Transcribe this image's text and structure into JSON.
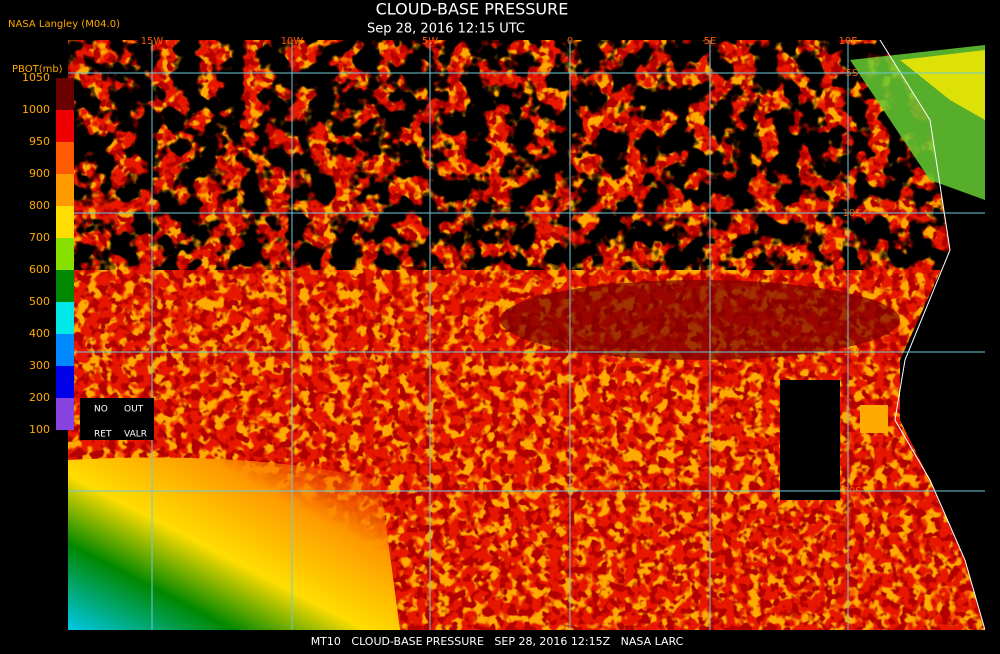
{
  "header": {
    "source": "NASA Langley (M04.0)",
    "title": "CLOUD-BASE PRESSURE",
    "subtitle": "Sep 28, 2016 12:15 UTC"
  },
  "colorbar": {
    "label": "PBOT(mb)",
    "ticks": [
      1050,
      1000,
      950,
      900,
      800,
      700,
      600,
      500,
      400,
      300,
      200,
      100
    ],
    "colors": [
      "#6b0000",
      "#ee0000",
      "#ff5a00",
      "#ff9900",
      "#ffdd00",
      "#88e000",
      "#008800",
      "#00e8e8",
      "#0088ff",
      "#0000e8",
      "#8844e0"
    ]
  },
  "legend_box": {
    "items": [
      "NO",
      "OUT",
      "RET",
      "VALR"
    ]
  },
  "grid": {
    "longitudes": [
      "15W",
      "10W",
      "5W",
      "0",
      "5E",
      "10E"
    ],
    "latitudes": [
      "5S",
      "10S",
      "15S",
      "20S"
    ]
  },
  "footer": "MT10   CLOUD-BASE PRESSURE   SEP 28, 2016 12:15Z   NASA LARC"
}
